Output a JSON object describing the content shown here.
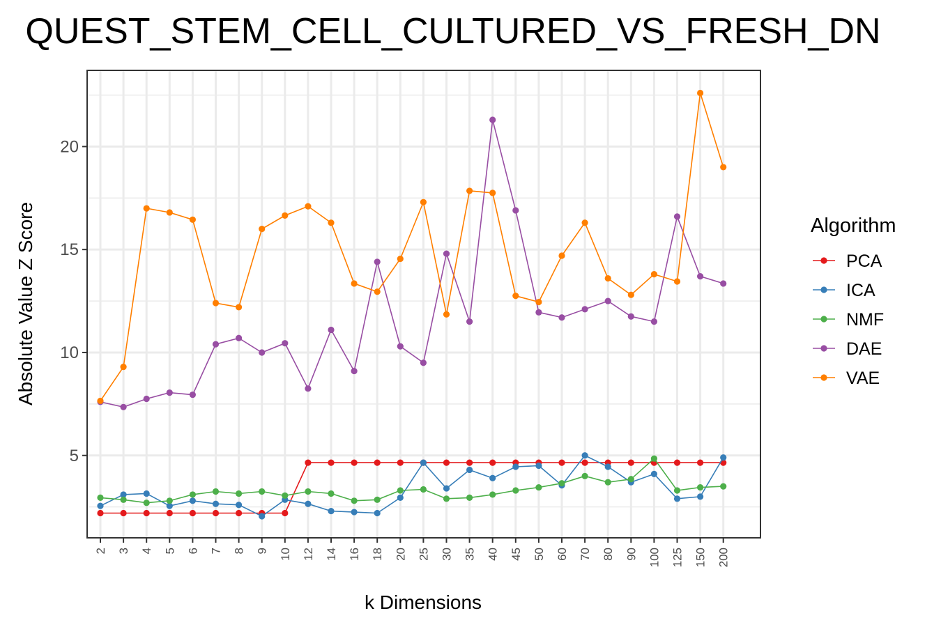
{
  "chart_data": {
    "type": "line",
    "title": "QUEST_STEM_CELL_CULTURED_VS_FRESH_DN",
    "xlabel": "k Dimensions",
    "ylabel": "Absolute Value Z Score",
    "categories": [
      "2",
      "3",
      "4",
      "5",
      "6",
      "7",
      "8",
      "9",
      "10",
      "12",
      "14",
      "16",
      "18",
      "20",
      "25",
      "30",
      "35",
      "40",
      "45",
      "50",
      "60",
      "70",
      "80",
      "90",
      "100",
      "125",
      "150",
      "200"
    ],
    "yticks": [
      5,
      10,
      15,
      20
    ],
    "ylim": [
      1.0,
      23.7
    ],
    "grid": true,
    "legend": {
      "title": "Algorithm",
      "position": "right"
    },
    "series": [
      {
        "name": "PCA",
        "color": "#E41A1C",
        "values": [
          2.2,
          2.2,
          2.2,
          2.2,
          2.2,
          2.2,
          2.2,
          2.2,
          2.2,
          4.65,
          4.65,
          4.65,
          4.65,
          4.65,
          4.65,
          4.65,
          4.65,
          4.65,
          4.65,
          4.65,
          4.65,
          4.65,
          4.65,
          4.65,
          4.65,
          4.65,
          4.65,
          4.65
        ]
      },
      {
        "name": "ICA",
        "color": "#377EB8",
        "values": [
          2.55,
          3.1,
          3.15,
          2.55,
          2.8,
          2.65,
          2.6,
          2.05,
          2.85,
          2.65,
          2.3,
          2.25,
          2.2,
          2.95,
          4.65,
          3.4,
          4.3,
          3.9,
          4.45,
          4.5,
          3.55,
          5.0,
          4.45,
          3.7,
          4.1,
          2.9,
          3.0,
          4.9
        ]
      },
      {
        "name": "NMF",
        "color": "#4DAF4A",
        "values": [
          2.95,
          2.85,
          2.7,
          2.8,
          3.1,
          3.25,
          3.15,
          3.25,
          3.05,
          3.25,
          3.15,
          2.8,
          2.85,
          3.3,
          3.35,
          2.9,
          2.95,
          3.1,
          3.3,
          3.45,
          3.65,
          4.0,
          3.7,
          3.85,
          4.85,
          3.3,
          3.45,
          3.5
        ]
      },
      {
        "name": "DAE",
        "color": "#984EA3",
        "values": [
          7.6,
          7.35,
          7.75,
          8.05,
          7.95,
          10.4,
          10.7,
          10.0,
          10.45,
          8.25,
          11.1,
          9.1,
          14.4,
          10.3,
          9.5,
          14.8,
          11.5,
          21.3,
          16.9,
          11.95,
          11.7,
          12.1,
          12.5,
          11.75,
          11.5,
          16.6,
          13.7,
          13.35
        ]
      },
      {
        "name": "VAE",
        "color": "#FF7F00",
        "values": [
          7.65,
          9.3,
          17.0,
          16.8,
          16.45,
          12.4,
          12.2,
          16.0,
          16.65,
          17.1,
          16.3,
          13.35,
          12.95,
          14.55,
          17.3,
          11.85,
          17.85,
          17.75,
          12.75,
          12.45,
          14.7,
          16.3,
          13.6,
          12.8,
          13.8,
          13.45,
          22.6,
          19.0
        ]
      }
    ]
  }
}
